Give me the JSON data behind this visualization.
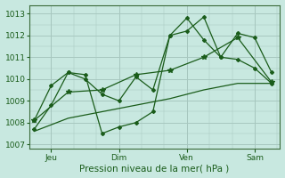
{
  "title": "",
  "xlabel": "Pression niveau de la mer( hPa )",
  "ylabel": "",
  "bg_color": "#c8e8e0",
  "grid_color": "#a8c8c0",
  "line_color": "#1a5c1a",
  "ylim": [
    1006.8,
    1013.4
  ],
  "yticks": [
    1007,
    1008,
    1009,
    1010,
    1011,
    1012,
    1013
  ],
  "xtick_labels": [
    "Jeu",
    "Dim",
    "Ven",
    "Sam"
  ],
  "xtick_positions": [
    1,
    5,
    9,
    13
  ],
  "vline_positions": [
    1,
    5,
    9,
    13
  ],
  "series": [
    {
      "x": [
        0,
        2,
        4,
        6,
        8,
        10,
        12,
        14
      ],
      "y": [
        1007.6,
        1008.2,
        1008.5,
        1008.8,
        1009.1,
        1009.5,
        1009.8,
        1009.8
      ]
    },
    {
      "x": [
        0,
        1,
        2,
        3,
        4,
        5,
        6,
        7,
        8,
        9,
        10,
        11,
        12,
        13,
        14
      ],
      "y": [
        1008.1,
        1009.7,
        1010.3,
        1010.0,
        1009.3,
        1009.0,
        1010.1,
        1009.5,
        1012.0,
        1012.8,
        1011.8,
        1011.0,
        1012.1,
        1011.9,
        1010.3
      ]
    },
    {
      "x": [
        0,
        1,
        2,
        3,
        4,
        5,
        6,
        7,
        8,
        9,
        10,
        11,
        12,
        13,
        14
      ],
      "y": [
        1007.7,
        1008.8,
        1010.3,
        1010.2,
        1007.5,
        1007.8,
        1008.0,
        1008.5,
        1012.0,
        1012.2,
        1012.85,
        1011.0,
        1010.9,
        1010.5,
        1009.8
      ]
    },
    {
      "x": [
        0,
        2,
        4,
        6,
        8,
        10,
        12,
        14
      ],
      "y": [
        1008.1,
        1009.4,
        1009.5,
        1010.2,
        1010.4,
        1011.0,
        1011.9,
        1009.85
      ]
    }
  ]
}
